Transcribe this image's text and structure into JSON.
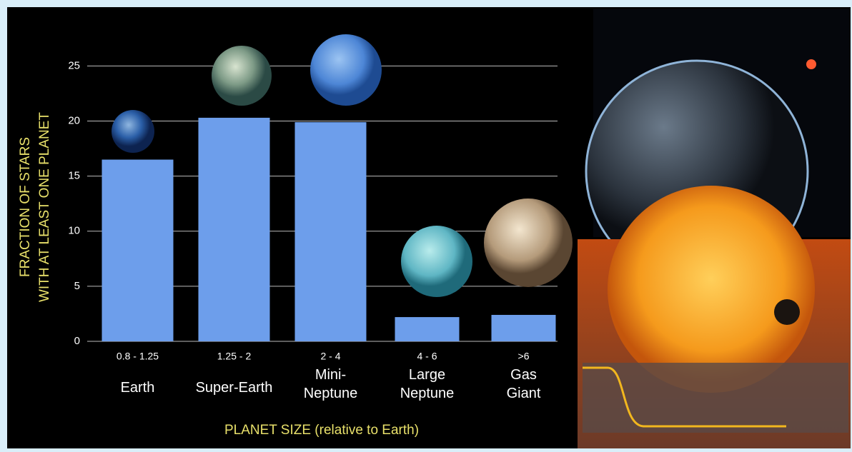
{
  "chart_data": {
    "type": "bar",
    "y_label": [
      "FRACTION OF STARS",
      "WITH AT LEAST ONE PLANET"
    ],
    "x_label": "PLANET SIZE (relative to Earth)",
    "categories": [
      "Earth",
      "Super-Earth",
      "Mini-\nNeptune",
      "Large\nNeptune",
      "Gas\nGiant"
    ],
    "size_ranges": [
      "0.8 - 1.25",
      "1.25 - 2",
      "2 - 4",
      "4 - 6",
      ">6"
    ],
    "values": [
      16.5,
      20.3,
      19.9,
      2.2,
      2.4
    ],
    "color": "#6d9eeb",
    "ylim": [
      0,
      26
    ],
    "yticks": [
      0,
      5,
      10,
      15,
      20,
      25
    ],
    "grid": true
  }
}
